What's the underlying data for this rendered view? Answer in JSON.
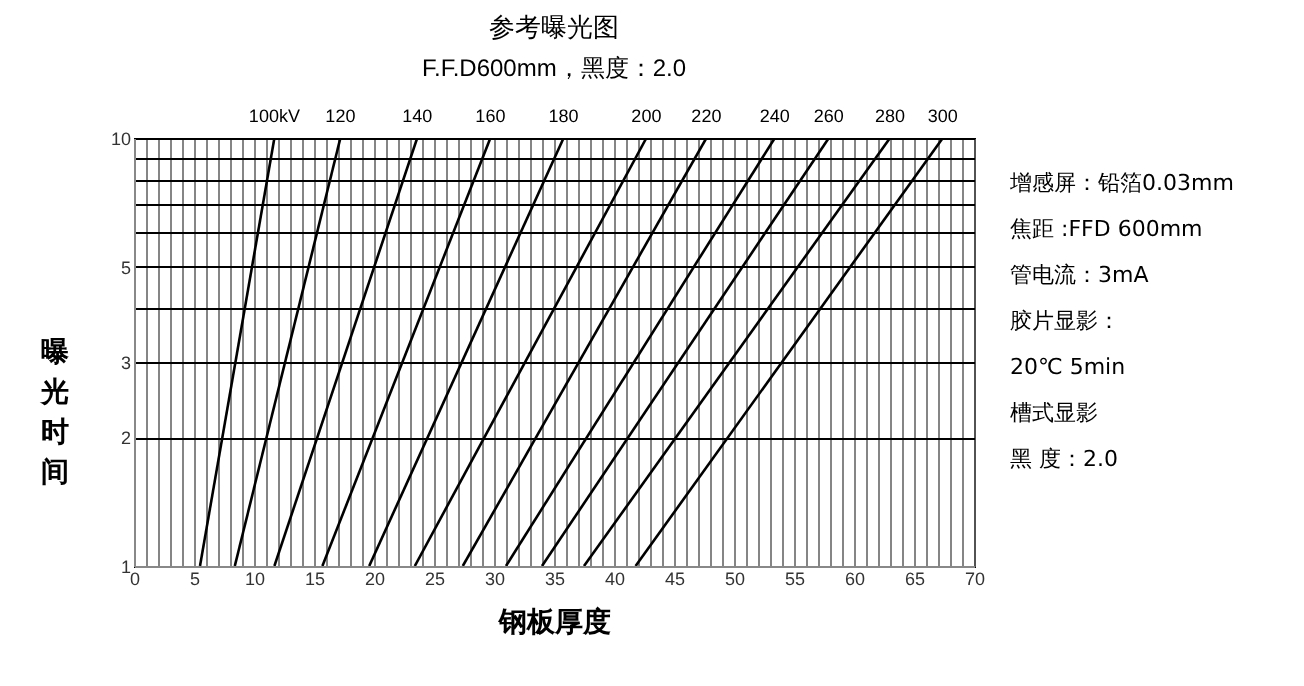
{
  "chart_data": {
    "type": "line",
    "title": "参考曝光图",
    "subtitle": "F.F.D600mm，黑度：2.0",
    "xlabel": "钢板厚度",
    "ylabel": "曝光时间",
    "log": "y",
    "grid": true,
    "marker": "none",
    "line_style": "solid",
    "xlim": [
      0,
      70
    ],
    "ylim": [
      1,
      10
    ],
    "xticks": [
      0,
      {
        "value": 1,
        "label": null
      },
      {
        "value": 2,
        "label": null
      },
      {
        "value": 3,
        "label": null
      },
      {
        "value": 4,
        "label": null
      },
      5,
      {
        "value": 6,
        "label": null
      },
      {
        "value": 7,
        "label": null
      },
      {
        "value": 8,
        "label": null
      },
      {
        "value": 9,
        "label": null
      },
      10,
      {
        "value": 11,
        "label": null
      },
      {
        "value": 12,
        "label": null
      },
      {
        "value": 13,
        "label": null
      },
      {
        "value": 14,
        "label": null
      },
      15,
      {
        "value": 16,
        "label": null
      },
      {
        "value": 17,
        "label": null
      },
      {
        "value": 18,
        "label": null
      },
      {
        "value": 19,
        "label": null
      },
      20,
      {
        "value": 21,
        "label": null
      },
      {
        "value": 22,
        "label": null
      },
      {
        "value": 23,
        "label": null
      },
      {
        "value": 24,
        "label": null
      },
      25,
      {
        "value": 26,
        "label": null
      },
      {
        "value": 27,
        "label": null
      },
      {
        "value": 28,
        "label": null
      },
      {
        "value": 29,
        "label": null
      },
      30,
      {
        "value": 31,
        "label": null
      },
      {
        "value": 32,
        "label": null
      },
      {
        "value": 33,
        "label": null
      },
      {
        "value": 34,
        "label": null
      },
      35,
      {
        "value": 36,
        "label": null
      },
      {
        "value": 37,
        "label": null
      },
      {
        "value": 38,
        "label": null
      },
      {
        "value": 39,
        "label": null
      },
      40,
      {
        "value": 41,
        "label": null
      },
      {
        "value": 42,
        "label": null
      },
      {
        "value": 43,
        "label": null
      },
      {
        "value": 44,
        "label": null
      },
      45,
      {
        "value": 46,
        "label": null
      },
      {
        "value": 47,
        "label": null
      },
      {
        "value": 48,
        "label": null
      },
      {
        "value": 49,
        "label": null
      },
      50,
      {
        "value": 51,
        "label": null
      },
      {
        "value": 52,
        "label": null
      },
      {
        "value": 53,
        "label": null
      },
      {
        "value": 54,
        "label": null
      },
      55,
      {
        "value": 56,
        "label": null
      },
      {
        "value": 57,
        "label": null
      },
      {
        "value": 58,
        "label": null
      },
      {
        "value": 59,
        "label": null
      },
      60,
      {
        "value": 61,
        "label": null
      },
      {
        "value": 62,
        "label": null
      },
      {
        "value": 63,
        "label": null
      },
      {
        "value": 64,
        "label": null
      },
      65,
      {
        "value": 66,
        "label": null
      },
      {
        "value": 67,
        "label": null
      },
      {
        "value": 68,
        "label": null
      },
      {
        "value": 69,
        "label": null
      },
      70
    ],
    "yticks": [
      1,
      2,
      3,
      {
        "value": 4,
        "label": null
      },
      5,
      {
        "value": 6,
        "label": null
      },
      {
        "value": 7,
        "label": null
      },
      {
        "value": 8,
        "label": null
      },
      {
        "value": 9,
        "label": null
      },
      10
    ],
    "series": [
      {
        "name": "100kV",
        "color": "#000000",
        "x": [
          5.5,
          11.7
        ],
        "values": [
          1,
          10
        ]
      },
      {
        "name": "120",
        "color": "#000000",
        "x": [
          8.4,
          17.2
        ],
        "values": [
          1,
          10
        ]
      },
      {
        "name": "140",
        "color": "#000000",
        "x": [
          11.7,
          23.6
        ],
        "values": [
          1,
          10
        ]
      },
      {
        "name": "160",
        "color": "#000000",
        "x": [
          15.7,
          29.7
        ],
        "values": [
          1,
          10
        ]
      },
      {
        "name": "180",
        "color": "#000000",
        "x": [
          19.6,
          35.8
        ],
        "values": [
          1,
          10
        ]
      },
      {
        "name": "200",
        "color": "#000000",
        "x": [
          23.4,
          42.7
        ],
        "values": [
          1,
          10
        ]
      },
      {
        "name": "220",
        "color": "#000000",
        "x": [
          27.4,
          47.7
        ],
        "values": [
          1,
          10
        ]
      },
      {
        "name": "240",
        "color": "#000000",
        "x": [
          31.0,
          53.4
        ],
        "values": [
          1,
          10
        ]
      },
      {
        "name": "260",
        "color": "#000000",
        "x": [
          34.0,
          57.9
        ],
        "values": [
          1,
          10
        ]
      },
      {
        "name": "280",
        "color": "#000000",
        "x": [
          37.5,
          63.0
        ],
        "values": [
          1,
          10
        ]
      },
      {
        "name": "300",
        "color": "#000000",
        "x": [
          41.8,
          67.4
        ],
        "values": [
          1,
          10
        ]
      }
    ],
    "annotations": [
      "增感屏：铅箔0.03mm",
      "焦距 :FFD 600mm",
      "管电流：3mA",
      "胶片显影：",
      "20℃ 5min",
      "槽式显影",
      "黑 度：2.0"
    ]
  }
}
